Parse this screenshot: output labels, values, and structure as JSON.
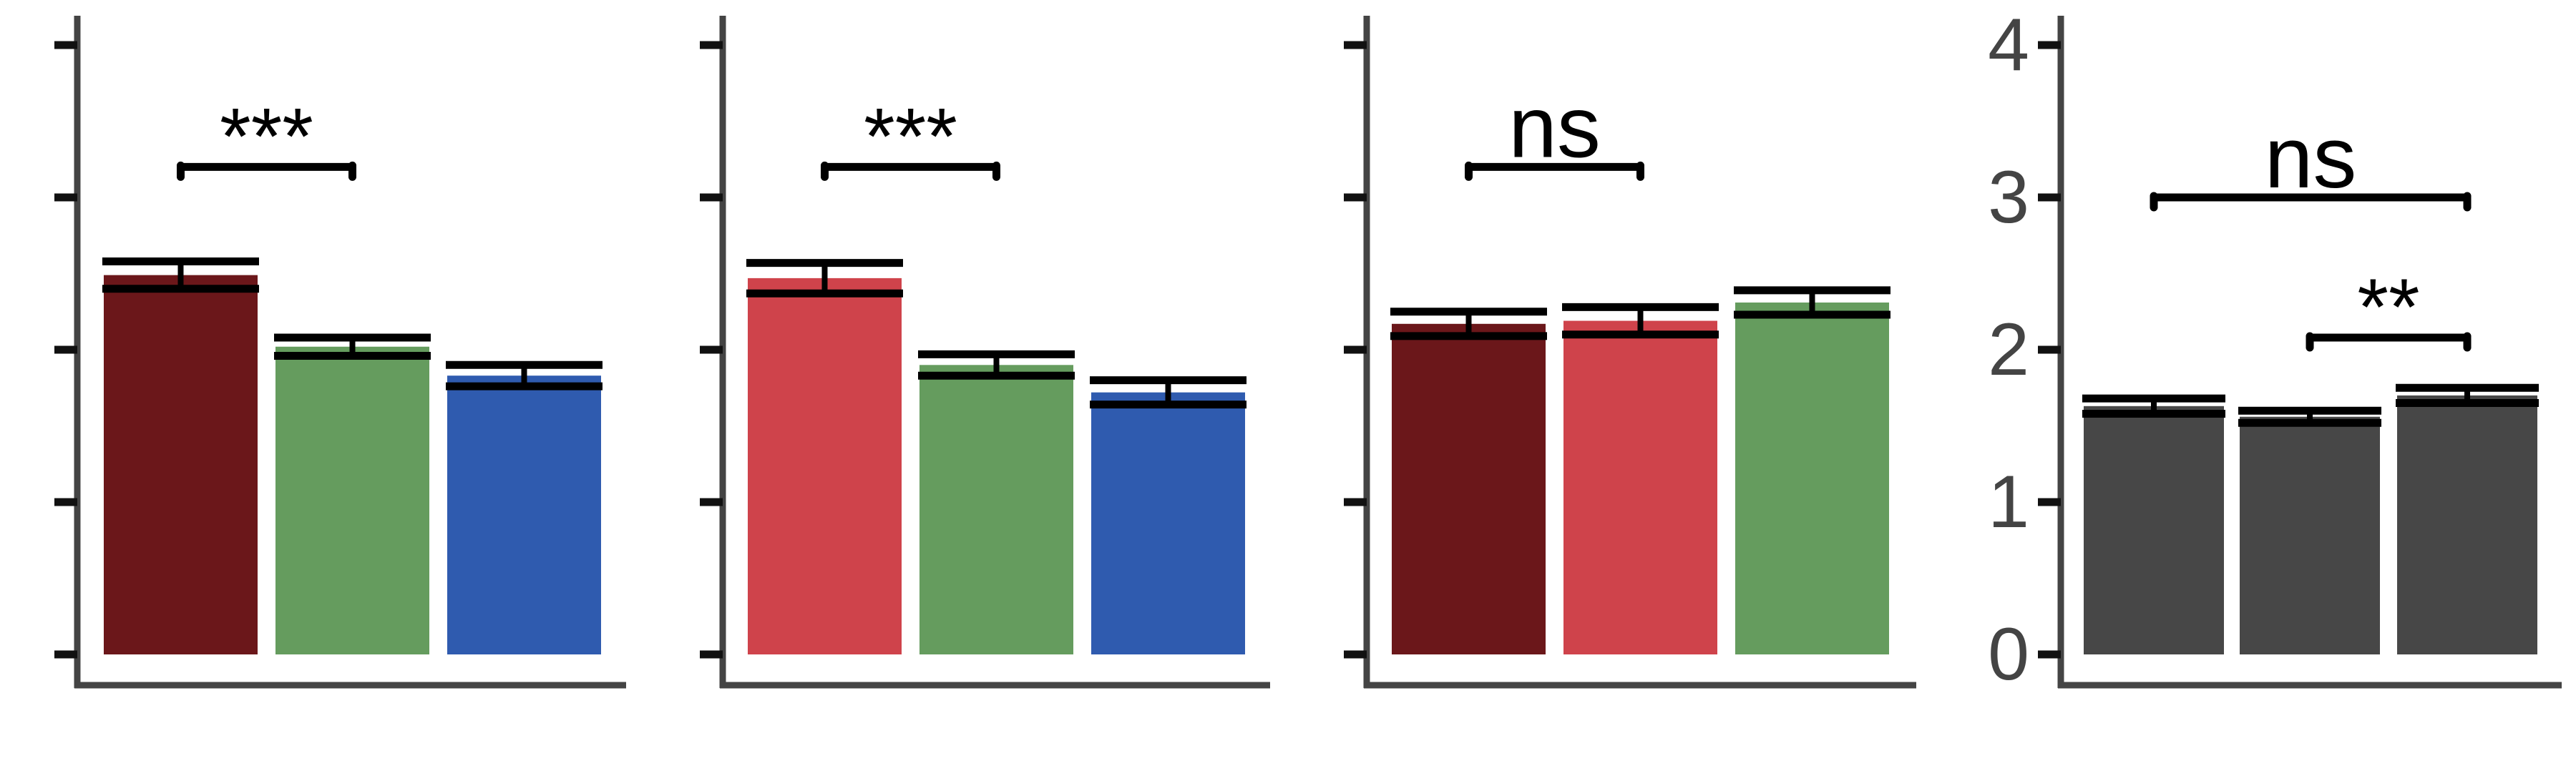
{
  "colors": {
    "axis": "#444444",
    "errorbar": "#000000",
    "annotation": "#000000",
    "dark_red": "#6b171a",
    "red": "#cf434b",
    "green": "#659c5e",
    "blue": "#2f5baf",
    "gray": "#474747"
  },
  "chart_data": [
    {
      "type": "bar",
      "ylim": [
        0,
        4
      ],
      "yticks": [
        0,
        1,
        2,
        3,
        4
      ],
      "show_tick_labels": false,
      "grid": false,
      "bars": [
        {
          "value": 2.49,
          "err": 0.09,
          "color": "#6b171a"
        },
        {
          "value": 2.02,
          "err": 0.06,
          "color": "#659c5e"
        },
        {
          "value": 1.83,
          "err": 0.07,
          "color": "#2f5baf"
        }
      ],
      "annotations": [
        {
          "text": "***",
          "from": 0,
          "to": 1,
          "y": 3.2
        }
      ]
    },
    {
      "type": "bar",
      "ylim": [
        0,
        4
      ],
      "yticks": [
        0,
        1,
        2,
        3,
        4
      ],
      "show_tick_labels": false,
      "grid": false,
      "bars": [
        {
          "value": 2.47,
          "err": 0.1,
          "color": "#cf434b"
        },
        {
          "value": 1.9,
          "err": 0.07,
          "color": "#659c5e"
        },
        {
          "value": 1.72,
          "err": 0.08,
          "color": "#2f5baf"
        }
      ],
      "annotations": [
        {
          "text": "***",
          "from": 0,
          "to": 1,
          "y": 3.2
        }
      ]
    },
    {
      "type": "bar",
      "ylim": [
        0,
        4
      ],
      "yticks": [
        0,
        1,
        2,
        3,
        4
      ],
      "show_tick_labels": false,
      "grid": false,
      "bars": [
        {
          "value": 2.17,
          "err": 0.08,
          "color": "#6b171a"
        },
        {
          "value": 2.19,
          "err": 0.09,
          "color": "#cf434b"
        },
        {
          "value": 2.31,
          "err": 0.08,
          "color": "#659c5e"
        }
      ],
      "annotations": [
        {
          "text": "ns",
          "from": 0,
          "to": 1,
          "y": 3.2
        }
      ]
    },
    {
      "type": "bar",
      "ylim": [
        0,
        4
      ],
      "yticks": [
        0,
        1,
        2,
        3,
        4
      ],
      "tick_labels": [
        "0",
        "1",
        "2",
        "3",
        "4"
      ],
      "show_tick_labels": true,
      "grid": false,
      "bars": [
        {
          "value": 1.63,
          "err": 0.05,
          "color": "#474747"
        },
        {
          "value": 1.56,
          "err": 0.04,
          "color": "#474747"
        },
        {
          "value": 1.7,
          "err": 0.05,
          "color": "#474747"
        }
      ],
      "annotations": [
        {
          "text": "ns",
          "from": 0,
          "to": 2,
          "y": 3.0
        },
        {
          "text": "**",
          "from": 1,
          "to": 2,
          "y": 2.08
        }
      ]
    }
  ]
}
